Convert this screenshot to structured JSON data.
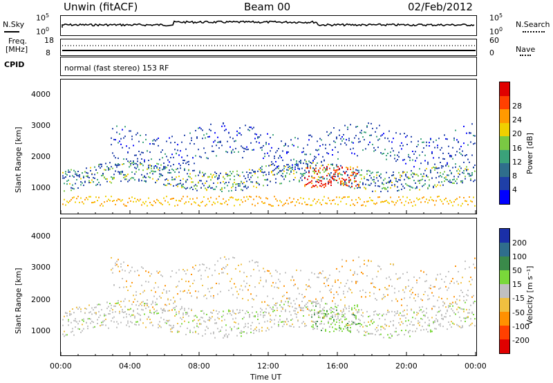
{
  "header": {
    "title": "Unwin (fitACF)",
    "beam": "Beam 00",
    "date": "02/Feb/2012"
  },
  "panel_labels": {
    "nsky": "N.Sky",
    "nsearch": "N.Search",
    "freq": "Freq.",
    "freq_unit": "[MHz]",
    "nave": "Nave",
    "cpid": "CPID",
    "mode": "normal (fast stereo) 153 RF"
  },
  "top_axes": {
    "noise_left": [
      "10^5",
      "10^0"
    ],
    "noise_right": [
      "10^5",
      "10^0"
    ],
    "freq_left": [
      "18",
      "8"
    ],
    "nave_right": [
      "60",
      "0"
    ]
  },
  "chart_data": [
    {
      "type": "heatmap",
      "name": "power",
      "ylabel": "Slant Range [km]",
      "yticks": [
        "1000",
        "2000",
        "3000",
        "4000"
      ],
      "colorbar_label": "Power [dB]",
      "colorbar_ticks": [
        "4",
        "8",
        "12",
        "16",
        "20",
        "24",
        "28"
      ],
      "colorbar_colors": [
        "#0000ff",
        "#1f3fa8",
        "#2f6e8c",
        "#3aa27a",
        "#7ac943",
        "#f0d000",
        "#ff9a00",
        "#ff4000",
        "#e00000"
      ]
    },
    {
      "type": "heatmap",
      "name": "velocity",
      "ylabel": "Slant Range [km]",
      "yticks": [
        "1000",
        "2000",
        "3000",
        "4000"
      ],
      "colorbar_label": "Velocity [m s⁻¹]",
      "colorbar_ticks": [
        "200",
        "100",
        "50",
        "15",
        "-15",
        "-50",
        "-100",
        "-200"
      ],
      "colorbar_colors": [
        "#1a2fa8",
        "#2f6e8c",
        "#3a8a4a",
        "#7ad83a",
        "#c0c0c0",
        "#f0c040",
        "#ff9000",
        "#ff4000",
        "#e00000"
      ]
    }
  ],
  "time_axis": {
    "label": "Time UT",
    "ticks": [
      "00:00",
      "04:00",
      "08:00",
      "12:00",
      "16:00",
      "20:00",
      "00:00"
    ]
  }
}
